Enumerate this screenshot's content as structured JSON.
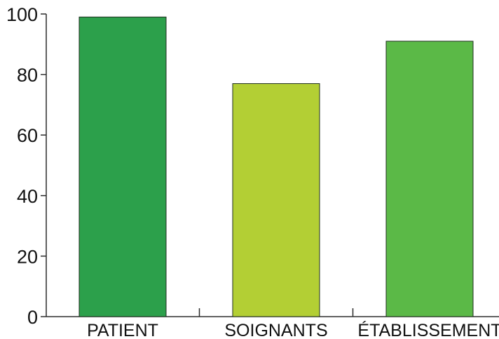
{
  "chart_data": {
    "type": "bar",
    "categories": [
      "PATIENT",
      "SOIGNANTS",
      "ÉTABLISSEMENT"
    ],
    "values": [
      99,
      77,
      91
    ],
    "colors": [
      "#2ca04b",
      "#b3cf34",
      "#5bb947"
    ],
    "ylim": [
      0,
      100
    ],
    "yticks": [
      0,
      20,
      40,
      60,
      80,
      100
    ],
    "grid": false,
    "legend": "none"
  }
}
